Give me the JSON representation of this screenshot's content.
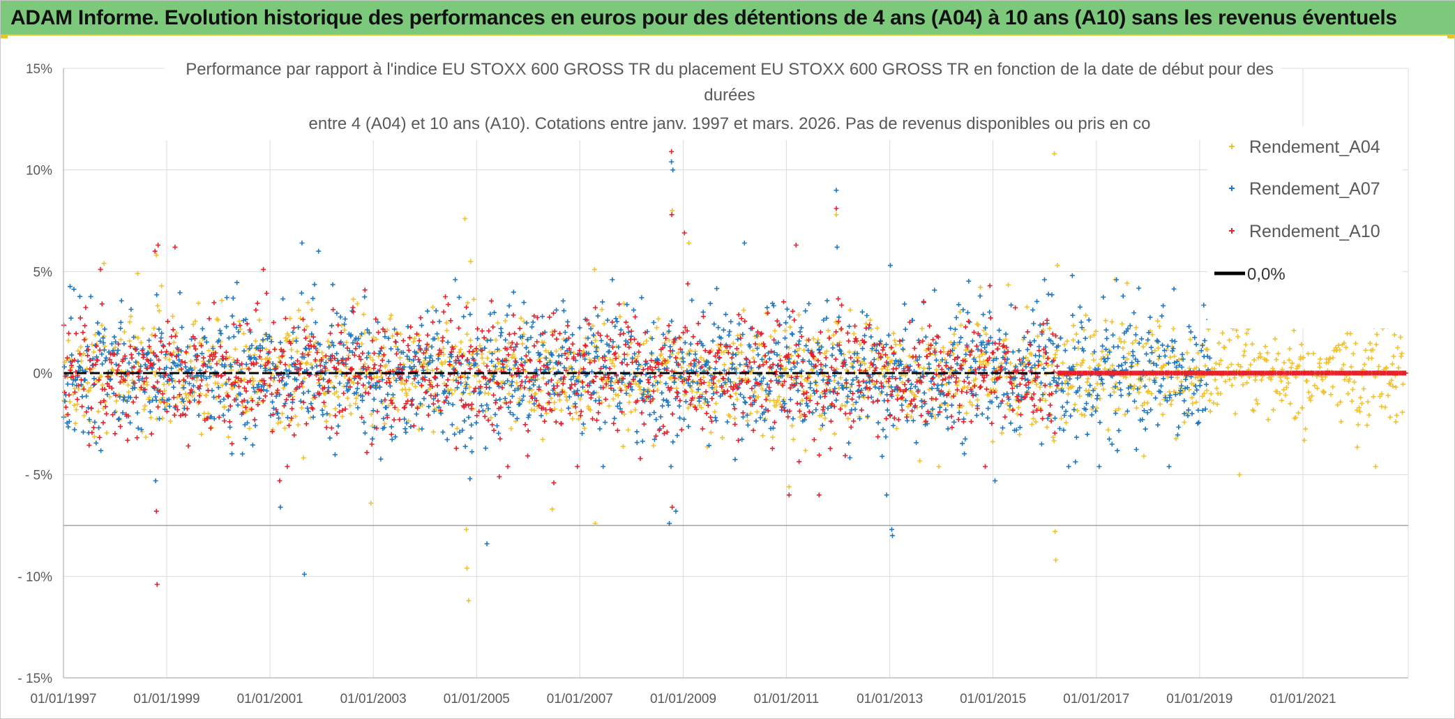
{
  "header": {
    "title": "ADAM Informe. Evolution historique des performances en euros pour des détentions de 4 ans (A04) à 10 ans (A10) sans les revenus éventuels"
  },
  "chart_data": {
    "type": "scatter",
    "title_lines": [
      "Performance par rapport à l'indice EU STOXX 600 GROSS TR  du placement EU STOXX 600 GROSS TR en fonction de la date de début pour des",
      "durées",
      "entre 4 (A04) et 10 ans (A10). Cotations entre janv. 1997 et mars. 2026. Pas de revenus disponibles ou pris en co"
    ],
    "x_tick_labels": [
      "01/01/1997",
      "01/01/1999",
      "01/01/2001",
      "01/01/2003",
      "01/01/2005",
      "01/01/2007",
      "01/01/2009",
      "01/01/2011",
      "01/01/2013",
      "01/01/2015",
      "01/01/2017",
      "01/01/2019",
      "01/01/2021"
    ],
    "xlim": [
      "1997-01-01",
      "2023-01-01"
    ],
    "y_tick_labels": [
      "15%",
      "10%",
      "5%",
      "0%",
      "- 5%",
      "- 10%",
      "- 15%"
    ],
    "ylim": [
      -15,
      15
    ],
    "y_unit": "%",
    "grid": true,
    "legend_position": "top-right",
    "series": [
      {
        "name": "Rendement_A04",
        "color": "#f2c12e",
        "marker": "+",
        "x_range": [
          "1997-01-01",
          "2022-12-15"
        ],
        "typical_spread_pct": 1.3,
        "extreme_points": [
          {
            "x": "1997-10-15",
            "y": 5.4
          },
          {
            "x": "1998-06-10",
            "y": 4.9
          },
          {
            "x": "1998-10-20",
            "y": 5.8
          },
          {
            "x": "2002-12-15",
            "y": -6.4
          },
          {
            "x": "2004-10-10",
            "y": 7.6
          },
          {
            "x": "2004-10-20",
            "y": -7.7
          },
          {
            "x": "2004-10-25",
            "y": -9.6
          },
          {
            "x": "2004-11-05",
            "y": -11.2
          },
          {
            "x": "2004-11-20",
            "y": 5.5
          },
          {
            "x": "2006-06-20",
            "y": -6.7
          },
          {
            "x": "2007-04-15",
            "y": 5.1
          },
          {
            "x": "2007-04-20",
            "y": -7.4
          },
          {
            "x": "2008-10-15",
            "y": 8.0
          },
          {
            "x": "2009-02-10",
            "y": 6.4
          },
          {
            "x": "2011-01-20",
            "y": -5.6
          },
          {
            "x": "2011-12-20",
            "y": 7.8
          },
          {
            "x": "2016-03-10",
            "y": 10.8
          },
          {
            "x": "2016-03-15",
            "y": -7.8
          },
          {
            "x": "2016-03-20",
            "y": -9.2
          },
          {
            "x": "2016-04-01",
            "y": 5.3
          },
          {
            "x": "2019-10-10",
            "y": -5.0
          },
          {
            "x": "2022-11-20",
            "y": 3.8
          },
          {
            "x": "2022-10-20",
            "y": -2.4
          }
        ]
      },
      {
        "name": "Rendement_A07",
        "color": "#1f78c1",
        "marker": "+",
        "x_range": [
          "1997-01-01",
          "2019-03-20"
        ],
        "typical_spread_pct": 1.5,
        "extreme_points": [
          {
            "x": "1998-10-15",
            "y": -5.3
          },
          {
            "x": "2001-03-15",
            "y": -6.6
          },
          {
            "x": "2001-08-15",
            "y": 6.4
          },
          {
            "x": "2001-09-01",
            "y": -9.9
          },
          {
            "x": "2001-12-10",
            "y": 6.0
          },
          {
            "x": "2004-11-15",
            "y": -5.2
          },
          {
            "x": "2005-03-15",
            "y": -8.4
          },
          {
            "x": "2008-10-10",
            "y": 10.4
          },
          {
            "x": "2008-10-20",
            "y": 10.0
          },
          {
            "x": "2008-09-25",
            "y": -7.4
          },
          {
            "x": "2008-11-10",
            "y": -6.8
          },
          {
            "x": "2010-03-10",
            "y": 6.4
          },
          {
            "x": "2011-12-20",
            "y": 9.0
          },
          {
            "x": "2011-12-25",
            "y": 6.2
          },
          {
            "x": "2013-01-05",
            "y": 5.3
          },
          {
            "x": "2012-12-10",
            "y": -6.0
          },
          {
            "x": "2013-01-15",
            "y": -7.7
          },
          {
            "x": "2013-01-20",
            "y": -8.0
          },
          {
            "x": "2015-01-15",
            "y": -5.3
          },
          {
            "x": "2016-07-15",
            "y": 4.8
          }
        ]
      },
      {
        "name": "Rendement_A10",
        "color": "#e8202a",
        "marker": "+",
        "x_range": [
          "1997-01-01",
          "2023-01-01"
        ],
        "typical_spread_pct": 1.4,
        "constant_zero_from": "2016-04-01",
        "extreme_points": [
          {
            "x": "1997-09-20",
            "y": 5.1
          },
          {
            "x": "1998-10-10",
            "y": 6.0
          },
          {
            "x": "1998-11-01",
            "y": 6.3
          },
          {
            "x": "1999-03-01",
            "y": 6.2
          },
          {
            "x": "1998-10-20",
            "y": -6.8
          },
          {
            "x": "1998-10-25",
            "y": -10.4
          },
          {
            "x": "2000-11-15",
            "y": 5.1
          },
          {
            "x": "2001-03-10",
            "y": -5.3
          },
          {
            "x": "2005-06-10",
            "y": -5.1
          },
          {
            "x": "2006-07-01",
            "y": -5.4
          },
          {
            "x": "2008-10-10",
            "y": 10.9
          },
          {
            "x": "2008-10-12",
            "y": 7.8
          },
          {
            "x": "2009-01-10",
            "y": 6.9
          },
          {
            "x": "2008-10-15",
            "y": -6.6
          },
          {
            "x": "2011-03-10",
            "y": 6.3
          },
          {
            "x": "2011-12-20",
            "y": 8.1
          },
          {
            "x": "2011-01-20",
            "y": -6.0
          },
          {
            "x": "2011-08-20",
            "y": -6.0
          },
          {
            "x": "2014-12-10",
            "y": 4.3
          }
        ]
      },
      {
        "name": "0,0%",
        "color": "#000000",
        "type": "line",
        "style": "dashed",
        "x": [
          "1997-01-01",
          "2016-04-01"
        ],
        "y": [
          0,
          0
        ]
      }
    ]
  }
}
